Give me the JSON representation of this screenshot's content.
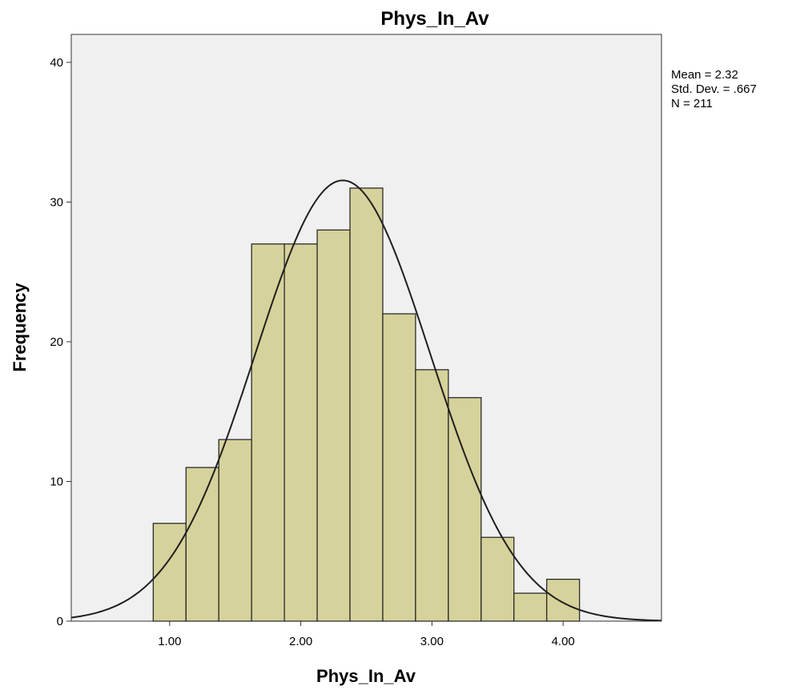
{
  "chart_data": {
    "type": "bar",
    "title": "Phys_In_Av",
    "xlabel": "Phys_In_Av",
    "ylabel": "Frequency",
    "bin_edges": [
      0.875,
      1.125,
      1.375,
      1.625,
      1.875,
      2.125,
      2.375,
      2.625,
      2.875,
      3.125,
      3.375,
      3.625,
      3.875,
      4.125
    ],
    "values": [
      7,
      11,
      13,
      27,
      27,
      28,
      31,
      22,
      18,
      16,
      6,
      2,
      3
    ],
    "xlim": [
      0.25,
      4.75
    ],
    "ylim": [
      0,
      42
    ],
    "xticks": [
      1.0,
      2.0,
      3.0,
      4.0
    ],
    "xtick_labels": [
      "1.00",
      "2.00",
      "3.00",
      "4.00"
    ],
    "yticks": [
      0,
      10,
      20,
      30,
      40
    ],
    "ytick_labels": [
      "0",
      "10",
      "20",
      "30",
      "40"
    ],
    "normal_curve": {
      "mean": 2.32,
      "sd": 0.667,
      "n": 211
    },
    "stats": [
      "Mean = 2.32",
      "Std. Dev. = .667",
      "N = 211"
    ],
    "legend_position": "top-right",
    "grid": false,
    "colors": {
      "bar_fill": "#d6d29b",
      "bar_stroke": "#2b2b2b",
      "plot_background": "#f0f0f0",
      "curve": "#1f1f1f"
    }
  }
}
